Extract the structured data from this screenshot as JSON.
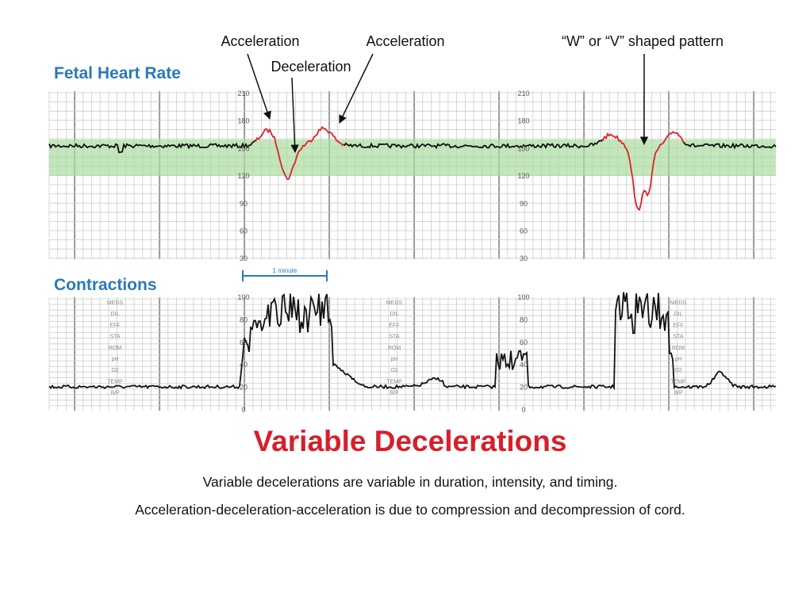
{
  "annotations": [
    "Acceleration",
    "Deceleration",
    "Acceleration",
    "“W” or “V” shaped pattern"
  ],
  "fhr": {
    "title": "Fetal Heart Rate",
    "scale": [
      "210",
      "180",
      "150",
      "120",
      "90",
      "60",
      "30"
    ]
  },
  "contractions": {
    "title": "Contractions",
    "interval": "1 minute",
    "scale": [
      "100",
      "80",
      "60",
      "40",
      "20",
      "0"
    ],
    "fields": [
      "MEDS",
      "DIL",
      "EFF",
      "STA",
      "ROM",
      "pH",
      "O2",
      "TEMP",
      "B/P"
    ]
  },
  "heading": "Variable Decelerations",
  "captions": [
    "Variable decelerations are variable in duration, intensity, and timing.",
    "Acceleration-deceleration-acceleration is due to compression and decompression of cord."
  ]
}
